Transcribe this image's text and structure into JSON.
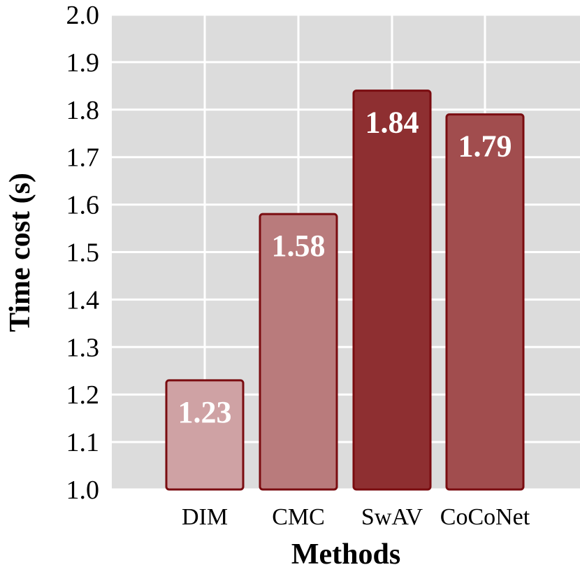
{
  "chart_data": {
    "type": "bar",
    "title": "",
    "xlabel": "Methods",
    "ylabel": "Time cost (s)",
    "ylim": [
      1.0,
      2.0
    ],
    "yticks": [
      "1.0",
      "1.1",
      "1.2",
      "1.3",
      "1.4",
      "1.5",
      "1.6",
      "1.7",
      "1.8",
      "1.9",
      "2.0"
    ],
    "categories": [
      "DIM",
      "CMC",
      "SwAV",
      "CoCoNet"
    ],
    "values": [
      1.23,
      1.58,
      1.84,
      1.79
    ],
    "value_labels": [
      "1.23",
      "1.58",
      "1.84",
      "1.79"
    ],
    "colors": [
      "#cfa2a4",
      "#b97b7c",
      "#8e2f31",
      "#a14d4e"
    ],
    "edge_color": "#7a0c10",
    "grid": true,
    "grid_color": "#ffffff",
    "panel_background": "#dcdcdc",
    "legend": "none"
  }
}
